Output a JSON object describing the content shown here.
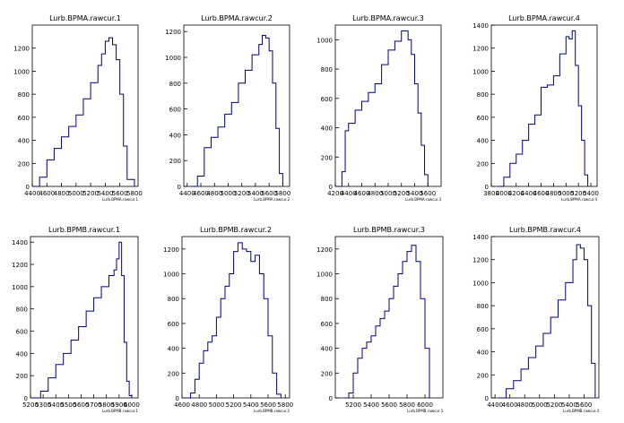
{
  "chart_data": [
    {
      "type": "histogram",
      "title": "Lurb.BPMA.rawcur.1",
      "xlabel": "Lurb.BPMA.rawcur.1",
      "xlim": [
        4400,
        5850
      ],
      "ylim": [
        0,
        1400
      ],
      "xticks": [
        4400,
        4600,
        4800,
        5000,
        5200,
        5400,
        5600,
        5800
      ],
      "yticks": [
        0,
        200,
        400,
        600,
        800,
        1000,
        1200
      ],
      "x": [
        4400,
        4500,
        4600,
        4700,
        4800,
        4900,
        5000,
        5100,
        5200,
        5300,
        5350,
        5400,
        5450,
        5500,
        5550,
        5600,
        5650,
        5700,
        5800
      ],
      "y": [
        0,
        80,
        230,
        330,
        430,
        520,
        620,
        760,
        900,
        1050,
        1150,
        1260,
        1290,
        1230,
        1100,
        800,
        350,
        60,
        0
      ]
    },
    {
      "type": "histogram",
      "title": "Lurb.BPMA.rawcur.2",
      "xlabel": "Lurb.BPMA.rawcur.2",
      "xlim": [
        4350,
        5900
      ],
      "ylim": [
        0,
        1250
      ],
      "xticks": [
        4400,
        4600,
        4800,
        5000,
        5200,
        5400,
        5600,
        5800
      ],
      "yticks": [
        0,
        200,
        400,
        600,
        800,
        1000,
        1200
      ],
      "x": [
        4450,
        4550,
        4650,
        4750,
        4850,
        4950,
        5050,
        5150,
        5250,
        5350,
        5450,
        5500,
        5550,
        5600,
        5650,
        5700,
        5750,
        5800
      ],
      "y": [
        0,
        80,
        300,
        380,
        460,
        560,
        650,
        800,
        900,
        1020,
        1100,
        1170,
        1150,
        1050,
        800,
        450,
        100,
        0
      ]
    },
    {
      "type": "histogram",
      "title": "Lurb.BPMA.rawcur.3",
      "xlabel": "Lurb.BPMA.rawcur.3",
      "xlim": [
        4200,
        5800
      ],
      "ylim": [
        0,
        1100
      ],
      "xticks": [
        4200,
        4400,
        4600,
        4800,
        5000,
        5200,
        5400,
        5600
      ],
      "yticks": [
        0,
        200,
        400,
        600,
        800,
        1000
      ],
      "x": [
        4250,
        4300,
        4350,
        4400,
        4500,
        4600,
        4700,
        4800,
        4900,
        5000,
        5100,
        5200,
        5300,
        5350,
        5400,
        5450,
        5500,
        5550,
        5600
      ],
      "y": [
        0,
        100,
        380,
        430,
        520,
        580,
        640,
        700,
        830,
        930,
        990,
        1060,
        1000,
        900,
        700,
        500,
        280,
        80,
        0
      ]
    },
    {
      "type": "histogram",
      "title": "Lurb.BPMA.rawcur.4",
      "xlabel": "Lurb.BPMA.rawcur.4",
      "xlim": [
        3800,
        5500
      ],
      "ylim": [
        0,
        1400
      ],
      "xticks": [
        3800,
        4000,
        4200,
        4400,
        4600,
        4800,
        5000,
        5200,
        5400
      ],
      "yticks": [
        0,
        200,
        400,
        600,
        800,
        1000,
        1200,
        1400
      ],
      "x": [
        3900,
        4000,
        4100,
        4200,
        4300,
        4400,
        4500,
        4600,
        4700,
        4800,
        4900,
        5000,
        5050,
        5100,
        5150,
        5200,
        5250,
        5300,
        5350
      ],
      "y": [
        0,
        80,
        200,
        280,
        400,
        540,
        620,
        860,
        880,
        960,
        1150,
        1300,
        1280,
        1350,
        1050,
        700,
        400,
        100,
        0
      ]
    },
    {
      "type": "histogram",
      "title": "Lurb.BPMB.rawcur.1",
      "xlabel": "Lurb.BPMB.rawcur.1",
      "xlim": [
        5200,
        6050
      ],
      "ylim": [
        0,
        1450
      ],
      "xticks": [
        5200,
        5300,
        5400,
        5500,
        5600,
        5700,
        5800,
        5900,
        6000
      ],
      "yticks": [
        0,
        200,
        400,
        600,
        800,
        1000,
        1200,
        1400
      ],
      "x": [
        5220,
        5280,
        5340,
        5400,
        5460,
        5520,
        5580,
        5640,
        5700,
        5760,
        5820,
        5860,
        5880,
        5900,
        5920,
        5940,
        5960,
        5980,
        6000
      ],
      "y": [
        0,
        60,
        180,
        300,
        400,
        520,
        640,
        780,
        900,
        1000,
        1100,
        1150,
        1250,
        1400,
        1100,
        500,
        150,
        20,
        0
      ]
    },
    {
      "type": "histogram",
      "title": "Lurb.BPMB.rawcur.2",
      "xlabel": "Lurb.BPMB.rawcur.2",
      "xlim": [
        4600,
        5850
      ],
      "ylim": [
        0,
        1300
      ],
      "xticks": [
        4600,
        4800,
        5000,
        5200,
        5400,
        5600,
        5800
      ],
      "yticks": [
        0,
        200,
        400,
        600,
        800,
        1000,
        1200
      ],
      "x": [
        4650,
        4700,
        4750,
        4800,
        4850,
        4900,
        4950,
        5000,
        5050,
        5100,
        5150,
        5200,
        5250,
        5300,
        5350,
        5400,
        5450,
        5500,
        5550,
        5600,
        5650,
        5700,
        5750
      ],
      "y": [
        0,
        40,
        150,
        280,
        380,
        450,
        500,
        650,
        800,
        900,
        1000,
        1180,
        1250,
        1200,
        1180,
        1100,
        1150,
        1000,
        800,
        500,
        200,
        30,
        0
      ]
    },
    {
      "type": "histogram",
      "title": "Lurb.BPMB.rawcur.3",
      "xlabel": "Lurb.BPMB.rawcur.3",
      "xlim": [
        5000,
        6200
      ],
      "ylim": [
        0,
        1300
      ],
      "xticks": [
        5200,
        5400,
        5600,
        5800,
        6000
      ],
      "yticks": [
        0,
        200,
        400,
        600,
        800,
        1000,
        1200
      ],
      "x": [
        5100,
        5150,
        5200,
        5250,
        5300,
        5350,
        5400,
        5450,
        5500,
        5550,
        5600,
        5650,
        5700,
        5750,
        5800,
        5850,
        5900,
        5950,
        6000,
        6050
      ],
      "y": [
        0,
        40,
        200,
        320,
        400,
        450,
        500,
        580,
        640,
        700,
        800,
        900,
        1000,
        1100,
        1180,
        1230,
        1100,
        800,
        400,
        0
      ]
    },
    {
      "type": "histogram",
      "title": "Lurb.BPMB.rawcur.4",
      "xlabel": "Lurb.BPMB.rawcur.4",
      "xlim": [
        4350,
        5800
      ],
      "ylim": [
        0,
        1400
      ],
      "xticks": [
        4400,
        4600,
        4800,
        5000,
        5200,
        5400,
        5600
      ],
      "yticks": [
        0,
        200,
        400,
        600,
        800,
        1000,
        1200,
        1400
      ],
      "x": [
        4450,
        4550,
        4650,
        4750,
        4850,
        4950,
        5050,
        5150,
        5250,
        5350,
        5450,
        5500,
        5550,
        5600,
        5650,
        5700,
        5750
      ],
      "y": [
        0,
        80,
        150,
        250,
        350,
        450,
        560,
        700,
        850,
        1000,
        1200,
        1330,
        1300,
        1200,
        800,
        300,
        0
      ]
    }
  ],
  "style": {
    "line_color": "#000080",
    "axis_color": "#000000",
    "title_bg": "#ffffff"
  }
}
